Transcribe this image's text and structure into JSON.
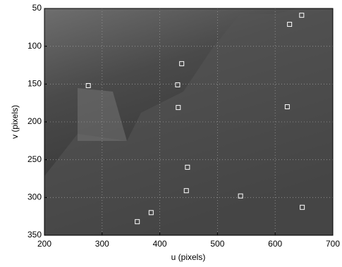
{
  "chart_data": {
    "type": "scatter",
    "xlabel": "u (pixels)",
    "ylabel": "v (pixels)",
    "x": [
      646,
      625,
      438,
      431,
      276,
      432,
      621,
      448,
      446,
      540,
      647,
      385,
      361
    ],
    "values": [
      59,
      71,
      123,
      151,
      152,
      181,
      180,
      260,
      291,
      298,
      313,
      320,
      332
    ],
    "color": "#ffffff",
    "xlim": [
      200,
      700
    ],
    "xticks": [
      200,
      300,
      400,
      500,
      600,
      700
    ],
    "ylim": [
      50,
      350
    ],
    "yticks": [
      50,
      100,
      150,
      200,
      250,
      300,
      350
    ],
    "y_inverted": true,
    "grid": true
  }
}
